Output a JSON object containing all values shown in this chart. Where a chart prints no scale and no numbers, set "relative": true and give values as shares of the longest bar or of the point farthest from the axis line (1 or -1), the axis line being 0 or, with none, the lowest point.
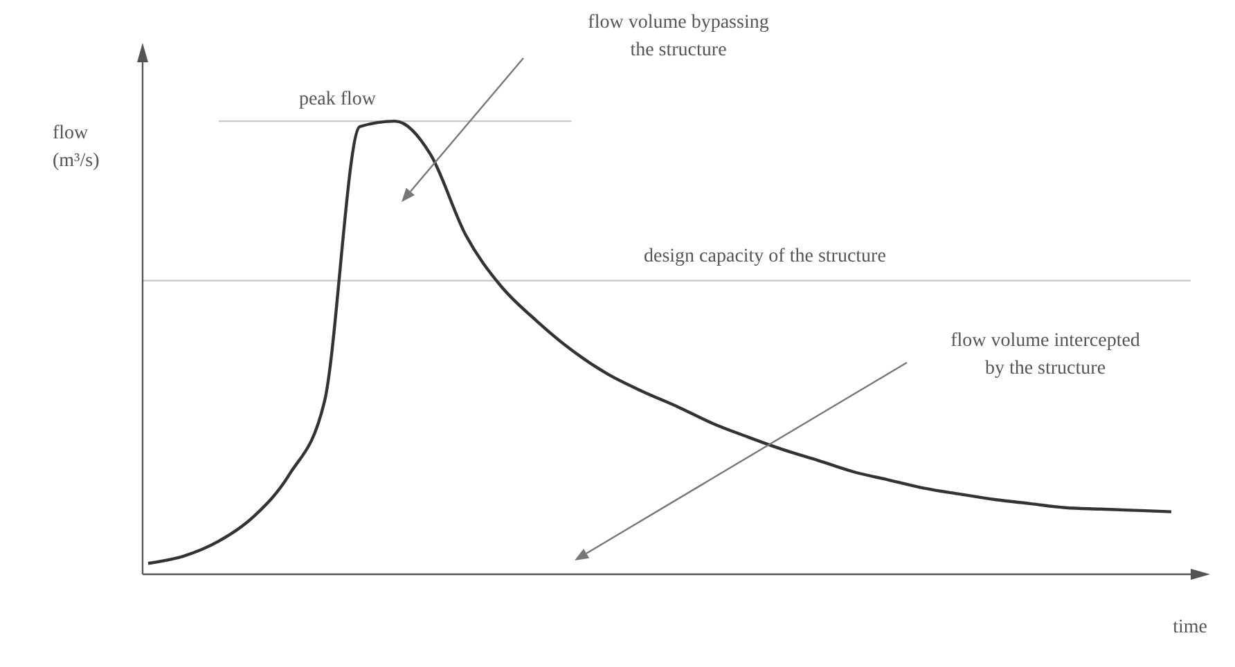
{
  "chart_data": {
    "type": "line",
    "relative": true,
    "ylabel": "flow (m³/s)",
    "xlabel": "time",
    "categories": [
      null,
      null,
      null,
      null,
      null,
      null,
      null,
      null,
      null,
      null,
      null,
      null,
      null,
      null,
      null,
      null,
      null,
      null,
      null,
      null,
      null,
      null,
      null,
      null,
      null,
      null,
      null,
      null,
      null,
      null
    ],
    "series": [
      {
        "color": "#333333",
        "values": [
          0.024,
          0.04,
          0.073,
          0.128,
          0.22,
          0.382,
          0.988,
          1,
          0.927,
          0.749,
          0.636,
          0.56,
          0.495,
          0.443,
          0.404,
          0.37,
          0.333,
          0.303,
          0.275,
          0.251,
          0.226,
          0.208,
          0.19,
          0.177,
          0.165,
          0.156,
          0.147,
          0.144,
          0.141,
          0.138
        ]
      }
    ],
    "ref_lines": [
      {
        "axis": "y",
        "value": 1,
        "label": "peak flow",
        "color": "#c8c8c8"
      },
      {
        "axis": "y",
        "value": 0.648,
        "label": "design capacity of the structure",
        "color": "#c8c8c8"
      }
    ],
    "annotations": [
      "flow volume bypassing the structure",
      "flow volume intercepted by the structure"
    ],
    "grid": false,
    "legend": false,
    "marker": "none",
    "line_style": "solid"
  }
}
